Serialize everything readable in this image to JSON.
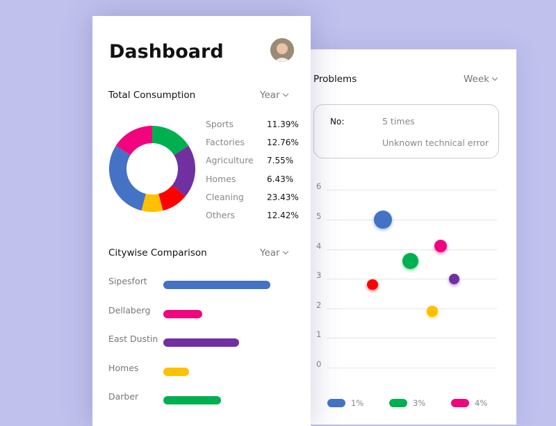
{
  "colors": {
    "blue": "#4472c4",
    "green": "#00b050",
    "purple": "#7030a0",
    "red": "#ff0000",
    "yellow": "#ffc000",
    "pink": "#f0057f",
    "background": "#c1c1ee"
  },
  "dashboard": {
    "title": "Dashboard",
    "avatar_icon": "user-avatar",
    "consumption": {
      "title": "Total Consumption",
      "period": "Year",
      "legend": [
        {
          "label": "Sports",
          "value": "11.39%"
        },
        {
          "label": "Factories",
          "value": "12.76%"
        },
        {
          "label": "Agriculture",
          "value": "7.55%"
        },
        {
          "label": "Homes",
          "value": "6.43%"
        },
        {
          "label": "Cleaning",
          "value": "23.43%"
        },
        {
          "label": "Others",
          "value": "12.42%"
        }
      ]
    },
    "citywise": {
      "title": "Citywise Comparison",
      "period": "Year",
      "items": [
        {
          "label": "Sipesfort",
          "value": 96,
          "color": "#4472c4"
        },
        {
          "label": "Dellaberg",
          "value": 35,
          "color": "#f0057f"
        },
        {
          "label": "East Dustin",
          "value": 68,
          "color": "#7030a0"
        },
        {
          "label": "Homes",
          "value": 23,
          "color": "#ffc000"
        },
        {
          "label": "Darber",
          "value": 52,
          "color": "#00b050"
        }
      ]
    }
  },
  "problems": {
    "title": "Problems",
    "period": "Week",
    "info": {
      "label": "No:",
      "count": "5 times",
      "description": "Unknown technical error"
    },
    "legend": [
      {
        "label": "1%",
        "color": "#4472c4"
      },
      {
        "label": "3%",
        "color": "#00b050"
      },
      {
        "label": "4%",
        "color": "#f0057f"
      }
    ]
  },
  "chart_data": [
    {
      "type": "pie",
      "donut": true,
      "segments": [
        {
          "color": "#00b050",
          "value": 16
        },
        {
          "color": "#7030a0",
          "value": 20
        },
        {
          "color": "#ff0000",
          "value": 10
        },
        {
          "color": "#ffc000",
          "value": 8
        },
        {
          "color": "#4472c4",
          "value": 30
        },
        {
          "color": "#f0057f",
          "value": 16
        }
      ]
    },
    {
      "type": "scatter",
      "bubble": true,
      "yticks": [
        "0",
        "1",
        "2",
        "3",
        "4",
        "5",
        "6"
      ],
      "ylim": [
        0,
        6
      ],
      "xlim": [
        0,
        10
      ],
      "grid": true,
      "legend_placement": "bottom",
      "points": [
        {
          "x": 2.7,
          "y": 2.8,
          "size": 1,
          "color": "#ff0000"
        },
        {
          "x": 3.3,
          "y": 5.0,
          "size": 3,
          "color": "#4472c4"
        },
        {
          "x": 4.9,
          "y": 3.6,
          "size": 2.4,
          "color": "#00b050"
        },
        {
          "x": 6.2,
          "y": 1.9,
          "size": 1,
          "color": "#ffc000"
        },
        {
          "x": 6.7,
          "y": 4.1,
          "size": 1.5,
          "color": "#f0057f"
        },
        {
          "x": 7.5,
          "y": 3.0,
          "size": 1,
          "color": "#7030a0"
        }
      ]
    }
  ]
}
